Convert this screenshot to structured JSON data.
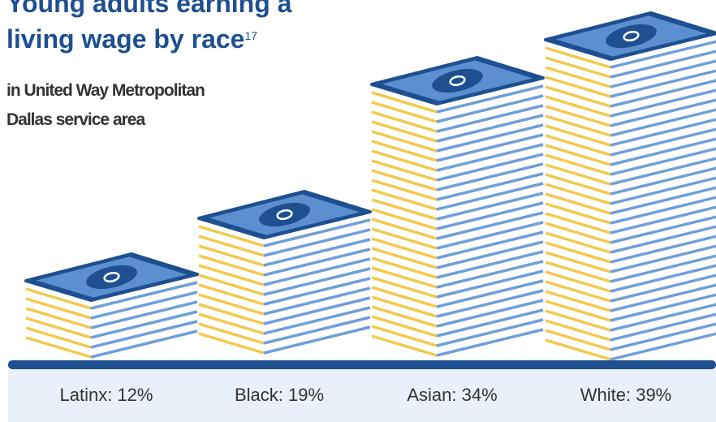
{
  "chart_data": {
    "type": "bar",
    "title": "Young adults earning a living wage by race",
    "title_footnote": "17",
    "subtitle": "in United Way Metropolitan Dallas service area",
    "categories": [
      "Latinx",
      "Black",
      "Asian",
      "White"
    ],
    "values": [
      12,
      19,
      34,
      39
    ],
    "value_labels": [
      "Latinx: 12%",
      "Black: 19%",
      "Asian: 34%",
      "White: 39%"
    ],
    "color": "#5b8fd0"
  }
}
